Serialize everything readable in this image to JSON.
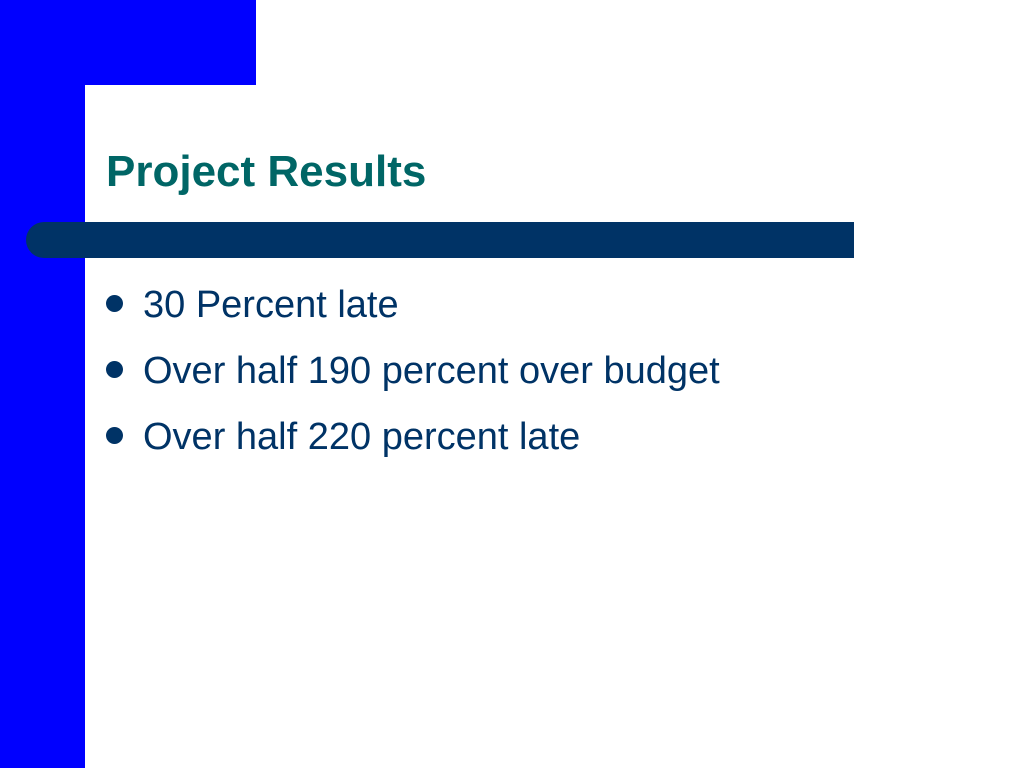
{
  "title": "Project Results",
  "bullets": [
    "30 Percent late",
    "Over half 190 percent over budget",
    "Over half 220 percent late"
  ]
}
